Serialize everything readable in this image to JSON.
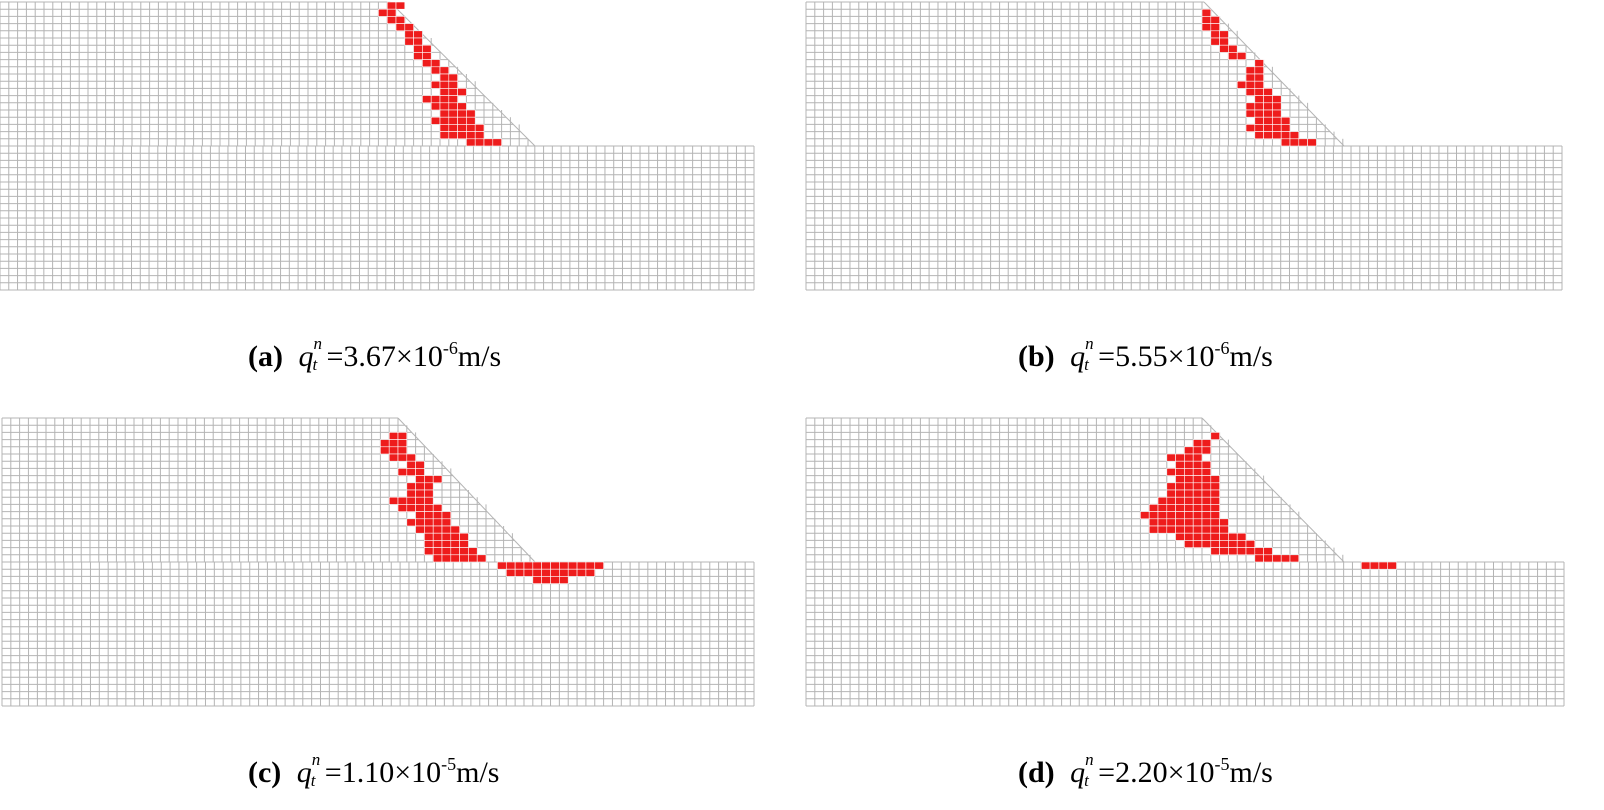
{
  "panels": [
    {
      "label": "(a)",
      "q_symbol": "q",
      "q_superscript": "n",
      "q_subscript": "t",
      "value_text": "=3.67×10",
      "exponent": "-6",
      "unit": "m/s",
      "failure_zone": "thin band along slope face (slope toe region)"
    },
    {
      "label": "(b)",
      "q_symbol": "q",
      "q_superscript": "n",
      "q_subscript": "t",
      "value_text": "=5.55×10",
      "exponent": "-6",
      "unit": "m/s",
      "failure_zone": "band along slope face"
    },
    {
      "label": "(c)",
      "q_symbol": "q",
      "q_superscript": "n",
      "q_subscript": "t",
      "value_text": "=1.10×10",
      "exponent": "-5",
      "unit": "m/s",
      "failure_zone": "band along slope face extending into foundation below toe"
    },
    {
      "label": "(d)",
      "q_symbol": "q",
      "q_superscript": "n",
      "q_subscript": "t",
      "value_text": "=2.20×10",
      "exponent": "-5",
      "unit": "m/s",
      "failure_zone": "wider band along slope face plus foundation strip at toe"
    }
  ],
  "colors": {
    "mesh_line": "#b4b4b4",
    "failed_element": "#ee1c1c",
    "background": "#ffffff"
  }
}
